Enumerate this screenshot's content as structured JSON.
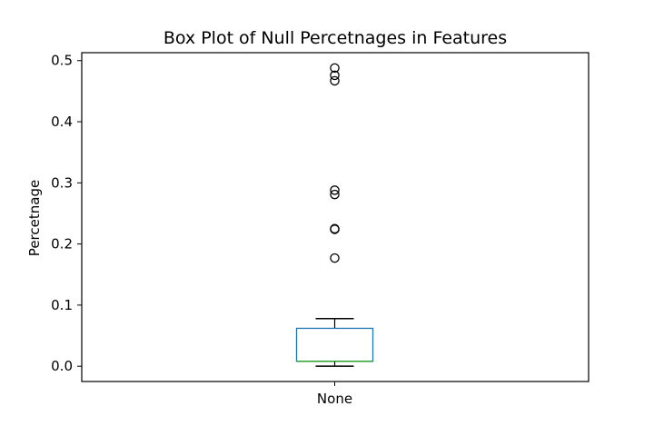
{
  "chart_data": {
    "type": "box",
    "title": "Box Plot of Null Percetnages in Features",
    "xlabel": "",
    "ylabel": "Percetnage",
    "categories": [
      "None"
    ],
    "ylim": [
      -0.025,
      0.513
    ],
    "yticks": [
      0.0,
      0.1,
      0.2,
      0.3,
      0.4,
      0.5
    ],
    "ytick_labels": [
      "0.0",
      "0.1",
      "0.2",
      "0.3",
      "0.4",
      "0.5"
    ],
    "grid": false,
    "box": {
      "whisker_low": 0.0,
      "q1": 0.008,
      "median": 0.008,
      "q3": 0.062,
      "whisker_high": 0.078,
      "outliers": [
        0.177,
        0.224,
        0.225,
        0.281,
        0.288,
        0.467,
        0.476,
        0.488
      ]
    },
    "colors": {
      "box": "#1f77b4",
      "median": "#2ca02c",
      "whisker": "#000000",
      "outlier": "#000000"
    }
  }
}
